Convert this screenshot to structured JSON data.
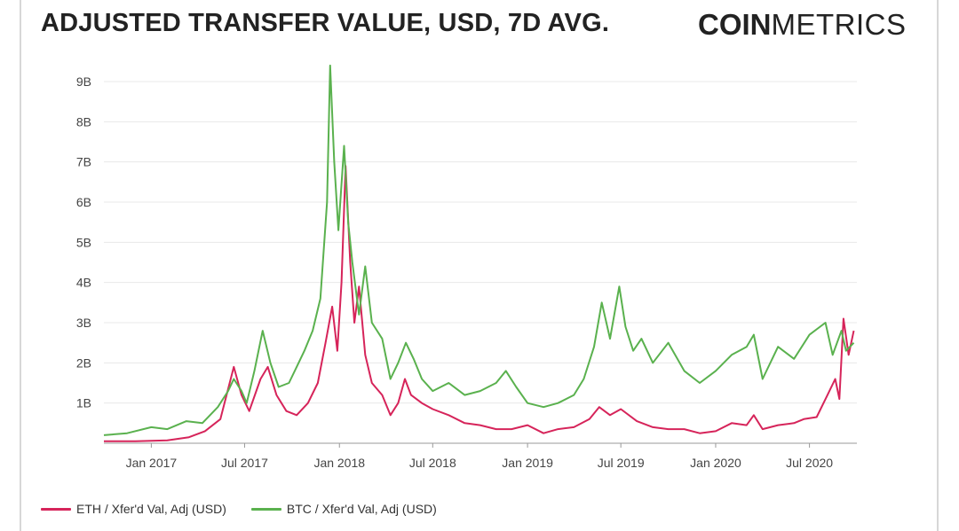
{
  "header": {
    "title": "ADJUSTED TRANSFER VALUE, USD, 7D AVG.",
    "brand_strong": "COIN",
    "brand_light": "METRICS"
  },
  "colors": {
    "eth": "#d6245a",
    "btc": "#5ab14e",
    "grid": "#e8e8e8",
    "axis": "#999999"
  },
  "chart_data": {
    "type": "line",
    "title": "ADJUSTED TRANSFER VALUE, USD, 7D AVG.",
    "xlabel": "",
    "ylabel": "",
    "ylim": [
      0,
      9
    ],
    "y_unit": "B",
    "y_ticks": [
      "1B",
      "2B",
      "3B",
      "4B",
      "5B",
      "6B",
      "7B",
      "8B",
      "9B"
    ],
    "x_ticks": [
      "Jan 2017",
      "Jul 2017",
      "Jan 2018",
      "Jul 2018",
      "Jan 2019",
      "Jul 2019",
      "Jan 2020",
      "Jul 2020"
    ],
    "xlim": [
      "2016-10-01",
      "2020-10-01"
    ],
    "grid": true,
    "legend_position": "bottom-left",
    "series": [
      {
        "name": "ETH / Xfer'd Val, Adj (USD)",
        "color_key": "eth",
        "points": [
          [
            "2016-10-01",
            0.05
          ],
          [
            "2016-12-01",
            0.05
          ],
          [
            "2017-02-01",
            0.07
          ],
          [
            "2017-03-15",
            0.15
          ],
          [
            "2017-04-15",
            0.3
          ],
          [
            "2017-05-15",
            0.6
          ],
          [
            "2017-06-10",
            1.9
          ],
          [
            "2017-06-25",
            1.2
          ],
          [
            "2017-07-10",
            0.8
          ],
          [
            "2017-08-01",
            1.6
          ],
          [
            "2017-08-15",
            1.9
          ],
          [
            "2017-09-01",
            1.2
          ],
          [
            "2017-09-20",
            0.8
          ],
          [
            "2017-10-10",
            0.7
          ],
          [
            "2017-11-01",
            1.0
          ],
          [
            "2017-11-20",
            1.5
          ],
          [
            "2017-12-05",
            2.5
          ],
          [
            "2017-12-18",
            3.4
          ],
          [
            "2017-12-28",
            2.3
          ],
          [
            "2018-01-05",
            4.0
          ],
          [
            "2018-01-13",
            6.9
          ],
          [
            "2018-01-22",
            4.5
          ],
          [
            "2018-01-30",
            3.0
          ],
          [
            "2018-02-08",
            3.9
          ],
          [
            "2018-02-20",
            2.2
          ],
          [
            "2018-03-05",
            1.5
          ],
          [
            "2018-03-25",
            1.2
          ],
          [
            "2018-04-10",
            0.7
          ],
          [
            "2018-04-25",
            1.0
          ],
          [
            "2018-05-08",
            1.6
          ],
          [
            "2018-05-20",
            1.2
          ],
          [
            "2018-06-10",
            1.0
          ],
          [
            "2018-07-01",
            0.85
          ],
          [
            "2018-08-01",
            0.7
          ],
          [
            "2018-09-01",
            0.5
          ],
          [
            "2018-10-01",
            0.45
          ],
          [
            "2018-11-01",
            0.35
          ],
          [
            "2018-12-01",
            0.35
          ],
          [
            "2019-01-01",
            0.45
          ],
          [
            "2019-02-01",
            0.25
          ],
          [
            "2019-03-01",
            0.35
          ],
          [
            "2019-04-01",
            0.4
          ],
          [
            "2019-05-01",
            0.6
          ],
          [
            "2019-05-20",
            0.9
          ],
          [
            "2019-06-10",
            0.7
          ],
          [
            "2019-07-01",
            0.85
          ],
          [
            "2019-08-01",
            0.55
          ],
          [
            "2019-09-01",
            0.4
          ],
          [
            "2019-10-01",
            0.35
          ],
          [
            "2019-11-01",
            0.35
          ],
          [
            "2019-12-01",
            0.25
          ],
          [
            "2020-01-01",
            0.3
          ],
          [
            "2020-02-01",
            0.5
          ],
          [
            "2020-03-01",
            0.45
          ],
          [
            "2020-03-15",
            0.7
          ],
          [
            "2020-04-01",
            0.35
          ],
          [
            "2020-05-01",
            0.45
          ],
          [
            "2020-06-01",
            0.5
          ],
          [
            "2020-06-20",
            0.6
          ],
          [
            "2020-07-15",
            0.65
          ],
          [
            "2020-08-05",
            1.2
          ],
          [
            "2020-08-20",
            1.6
          ],
          [
            "2020-08-28",
            1.1
          ],
          [
            "2020-09-05",
            3.1
          ],
          [
            "2020-09-15",
            2.2
          ],
          [
            "2020-09-25",
            2.8
          ]
        ]
      },
      {
        "name": "BTC / Xfer'd Val, Adj (USD)",
        "color_key": "btc",
        "points": [
          [
            "2016-10-01",
            0.2
          ],
          [
            "2016-11-15",
            0.25
          ],
          [
            "2017-01-01",
            0.4
          ],
          [
            "2017-02-01",
            0.35
          ],
          [
            "2017-03-10",
            0.55
          ],
          [
            "2017-04-10",
            0.5
          ],
          [
            "2017-05-10",
            0.9
          ],
          [
            "2017-05-30",
            1.3
          ],
          [
            "2017-06-10",
            1.6
          ],
          [
            "2017-06-25",
            1.3
          ],
          [
            "2017-07-05",
            1.0
          ],
          [
            "2017-07-20",
            1.8
          ],
          [
            "2017-08-05",
            2.8
          ],
          [
            "2017-08-20",
            2.0
          ],
          [
            "2017-09-05",
            1.4
          ],
          [
            "2017-09-25",
            1.5
          ],
          [
            "2017-10-10",
            1.9
          ],
          [
            "2017-10-25",
            2.3
          ],
          [
            "2017-11-10",
            2.8
          ],
          [
            "2017-11-25",
            3.6
          ],
          [
            "2017-12-08",
            6.0
          ],
          [
            "2017-12-14",
            9.4
          ],
          [
            "2017-12-22",
            7.0
          ],
          [
            "2017-12-30",
            5.3
          ],
          [
            "2018-01-10",
            7.4
          ],
          [
            "2018-01-18",
            5.5
          ],
          [
            "2018-01-26",
            4.5
          ],
          [
            "2018-02-08",
            3.2
          ],
          [
            "2018-02-20",
            4.4
          ],
          [
            "2018-03-05",
            3.0
          ],
          [
            "2018-03-25",
            2.6
          ],
          [
            "2018-04-10",
            1.6
          ],
          [
            "2018-04-25",
            2.0
          ],
          [
            "2018-05-10",
            2.5
          ],
          [
            "2018-05-25",
            2.1
          ],
          [
            "2018-06-10",
            1.6
          ],
          [
            "2018-07-01",
            1.3
          ],
          [
            "2018-08-01",
            1.5
          ],
          [
            "2018-09-01",
            1.2
          ],
          [
            "2018-10-01",
            1.3
          ],
          [
            "2018-11-01",
            1.5
          ],
          [
            "2018-11-20",
            1.8
          ],
          [
            "2018-12-10",
            1.4
          ],
          [
            "2019-01-01",
            1.0
          ],
          [
            "2019-02-01",
            0.9
          ],
          [
            "2019-03-01",
            1.0
          ],
          [
            "2019-04-01",
            1.2
          ],
          [
            "2019-04-20",
            1.6
          ],
          [
            "2019-05-10",
            2.4
          ],
          [
            "2019-05-25",
            3.5
          ],
          [
            "2019-06-10",
            2.6
          ],
          [
            "2019-06-28",
            3.9
          ],
          [
            "2019-07-10",
            2.9
          ],
          [
            "2019-07-25",
            2.3
          ],
          [
            "2019-08-10",
            2.6
          ],
          [
            "2019-09-01",
            2.0
          ],
          [
            "2019-10-01",
            2.5
          ],
          [
            "2019-11-01",
            1.8
          ],
          [
            "2019-12-01",
            1.5
          ],
          [
            "2020-01-01",
            1.8
          ],
          [
            "2020-02-01",
            2.2
          ],
          [
            "2020-03-01",
            2.4
          ],
          [
            "2020-03-15",
            2.7
          ],
          [
            "2020-04-01",
            1.6
          ],
          [
            "2020-05-01",
            2.4
          ],
          [
            "2020-06-01",
            2.1
          ],
          [
            "2020-07-01",
            2.7
          ],
          [
            "2020-08-01",
            3.0
          ],
          [
            "2020-08-15",
            2.2
          ],
          [
            "2020-09-01",
            2.8
          ],
          [
            "2020-09-10",
            2.3
          ],
          [
            "2020-09-25",
            2.5
          ]
        ]
      }
    ]
  }
}
